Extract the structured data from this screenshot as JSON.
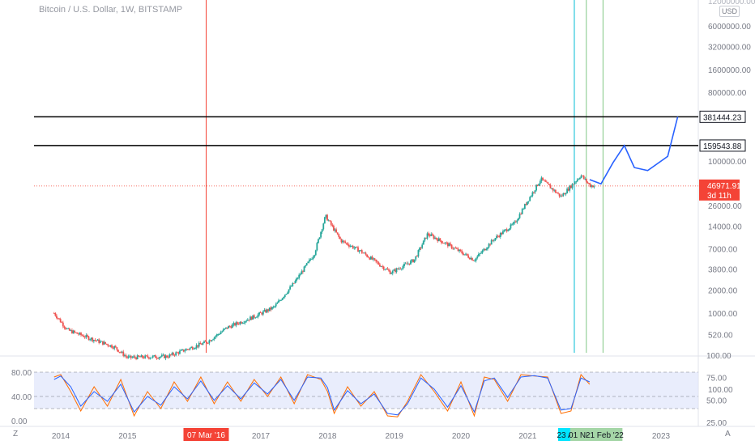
{
  "header": {
    "title": "Bitcoin / U.S. Dollar, 1W, BITSTAMP",
    "currency_badge": "USD",
    "top_price": "12000000.00"
  },
  "corner": {
    "left": "Z",
    "right": "A"
  },
  "colors": {
    "up": "#26a69a",
    "down": "#ef5350",
    "projection": "#2962ff",
    "k_line": "#2962ff",
    "d_line": "#ff6d00",
    "red_vline": "#f44336",
    "cyan_vline": "#00bcd4",
    "green_vline": "#81c784",
    "current_price": "#f44336",
    "band_fill": "#dfe6fb"
  },
  "chart_data": [
    {
      "type": "line",
      "title": "Bitcoin / U.S. Dollar, 1W, BITSTAMP",
      "scale": "log",
      "y_tick_labels": [
        "6000000.00",
        "3200000.00",
        "1600000.00",
        "800000.00",
        "100000.00",
        "26000.00",
        "14000.00",
        "7000.00",
        "3800.00",
        "2000.00",
        "1000.00",
        "520.00",
        "100.00"
      ],
      "y_ticks": [
        6000000,
        3200000,
        1600000,
        800000,
        100000,
        26000,
        14000,
        7000,
        3800,
        2000,
        1000,
        520,
        100
      ],
      "x_tick_labels": [
        "2014",
        "2015",
        "2017",
        "2018",
        "2019",
        "2020",
        "2021",
        "2023"
      ],
      "x_ticks": [
        2014.0,
        2015.0,
        2017.0,
        2018.0,
        2019.0,
        2020.0,
        2021.0,
        2023.0
      ],
      "price_series": {
        "name": "BTCUSD",
        "x": [
          2013.9,
          2014.1,
          2014.4,
          2014.8,
          2015.0,
          2015.6,
          2016.2,
          2016.5,
          2016.9,
          2017.2,
          2017.5,
          2017.8,
          2017.97,
          2018.2,
          2018.5,
          2018.95,
          2019.3,
          2019.5,
          2019.8,
          2020.2,
          2020.5,
          2020.8,
          2021.0,
          2021.2,
          2021.5,
          2021.8,
          2021.93,
          2022.0
        ],
        "y": [
          1000,
          600,
          480,
          360,
          260,
          270,
          420,
          650,
          900,
          1200,
          2500,
          6000,
          19000,
          9000,
          6500,
          3400,
          5000,
          11000,
          8000,
          5000,
          9500,
          15000,
          30000,
          58000,
          34000,
          65000,
          48000,
          46971.91
        ]
      },
      "projection": {
        "name": "",
        "x": [
          2021.93,
          2022.1,
          2022.28,
          2022.45,
          2022.6,
          2022.8,
          2023.1,
          2023.25
        ],
        "y": [
          57000,
          50000,
          95000,
          159543.88,
          82000,
          75000,
          115000,
          381444.23
        ]
      },
      "horizontal_levels": [
        {
          "value": 381444.23,
          "label": "381444.23"
        },
        {
          "value": 159543.88,
          "label": "159543.88"
        }
      ],
      "current_price": {
        "value": 46971.91,
        "label": "46971.91",
        "countdown": "3d 11h"
      },
      "vertical_markers": [
        {
          "x": 2016.18,
          "label": "07 Mar '16",
          "color": "red"
        },
        {
          "x": 2021.7,
          "label": "23 Aug '21",
          "color": "cyan"
        },
        {
          "x": 2021.88,
          "label": "01 Nov '21",
          "color": "green"
        },
        {
          "x": 2022.13,
          "label": "21 Feb '22",
          "color": "green"
        }
      ]
    },
    {
      "type": "line",
      "title": "",
      "left_axis": {
        "ticks": [
          80,
          40,
          0
        ],
        "tick_labels": [
          "80.00",
          "40.00",
          "0.00"
        ]
      },
      "right_axis": {
        "ticks": [
          100,
          75,
          50,
          25
        ],
        "tick_labels": [
          "100.00",
          "75.00",
          "50.00",
          "25.00"
        ]
      },
      "band": [
        20,
        80
      ],
      "series": [
        {
          "name": "",
          "x": [
            2013.9,
            2014.0,
            2014.15,
            2014.3,
            2014.5,
            2014.7,
            2014.9,
            2015.1,
            2015.3,
            2015.5,
            2015.7,
            2015.9,
            2016.1,
            2016.3,
            2016.5,
            2016.7,
            2016.9,
            2017.1,
            2017.3,
            2017.5,
            2017.7,
            2017.9,
            2018.0,
            2018.1,
            2018.3,
            2018.5,
            2018.7,
            2018.9,
            2019.05,
            2019.2,
            2019.4,
            2019.6,
            2019.8,
            2020.0,
            2020.2,
            2020.35,
            2020.5,
            2020.7,
            2020.9,
            2021.1,
            2021.3,
            2021.5,
            2021.65,
            2021.8,
            2021.93
          ],
          "y": [
            90,
            95,
            60,
            20,
            70,
            30,
            85,
            10,
            60,
            25,
            80,
            40,
            90,
            35,
            80,
            40,
            85,
            50,
            90,
            35,
            95,
            85,
            60,
            15,
            70,
            30,
            60,
            10,
            8,
            40,
            95,
            60,
            20,
            80,
            10,
            90,
            85,
            40,
            95,
            92,
            90,
            15,
            20,
            95,
            75
          ]
        },
        {
          "name": "",
          "x": [
            2013.9,
            2014.0,
            2014.15,
            2014.3,
            2014.5,
            2014.7,
            2014.9,
            2015.1,
            2015.3,
            2015.5,
            2015.7,
            2015.9,
            2016.1,
            2016.3,
            2016.5,
            2016.7,
            2016.9,
            2017.1,
            2017.3,
            2017.5,
            2017.7,
            2017.9,
            2018.0,
            2018.1,
            2018.3,
            2018.5,
            2018.7,
            2018.9,
            2019.05,
            2019.2,
            2019.4,
            2019.6,
            2019.8,
            2020.0,
            2020.2,
            2020.35,
            2020.5,
            2020.7,
            2020.9,
            2021.1,
            2021.3,
            2021.5,
            2021.65,
            2021.8,
            2021.93
          ],
          "y": [
            85,
            92,
            70,
            30,
            60,
            40,
            75,
            18,
            50,
            32,
            70,
            45,
            82,
            42,
            72,
            45,
            78,
            55,
            85,
            42,
            90,
            88,
            68,
            22,
            62,
            35,
            55,
            15,
            12,
            35,
            88,
            65,
            28,
            72,
            18,
            82,
            88,
            48,
            90,
            93,
            88,
            22,
            25,
            88,
            80
          ]
        }
      ]
    }
  ]
}
